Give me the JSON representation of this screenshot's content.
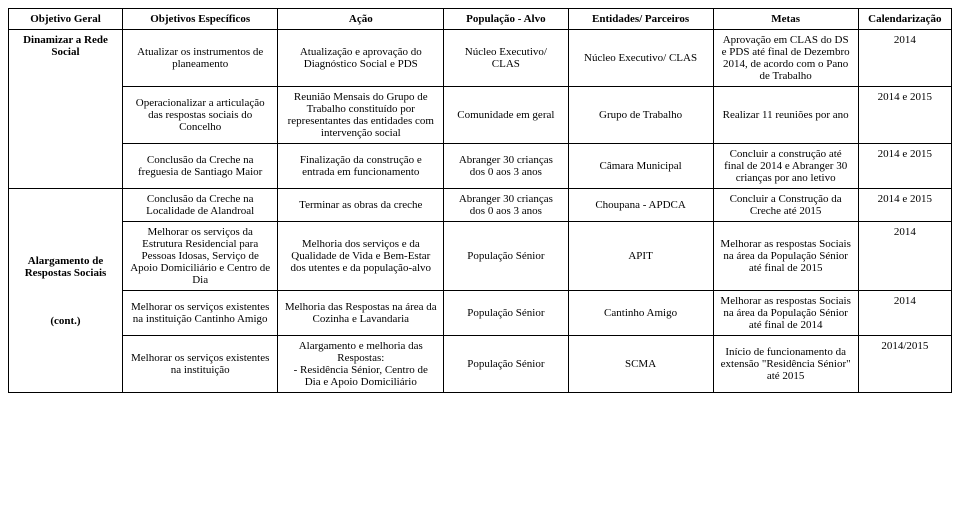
{
  "headers": {
    "c0": "Objetivo Geral",
    "c1": "Objetivos Específicos",
    "c2": "Ação",
    "c3": "População - Alvo",
    "c4": "Entidades/ Parceiros",
    "c5": "Metas",
    "c6": "Calendarização"
  },
  "rowhead1": "Dinamizar a Rede Social",
  "rowhead2": "Alargamento de Respostas Sociais\n\n\n\n(cont.)",
  "r": [
    {
      "oe": "Atualizar os instrumentos de planeamento",
      "ac": "Atualização e aprovação do Diagnóstico Social e PDS",
      "pa": "Núcleo Executivo/ CLAS",
      "ep": "Núcleo Executivo/ CLAS",
      "me": "Aprovação em CLAS do DS e PDS até final de Dezembro 2014, de acordo com o Pano de Trabalho",
      "ca": "2014"
    },
    {
      "oe": "Operacionalizar a articulação das respostas sociais do Concelho",
      "ac": "Reunião Mensais do Grupo de Trabalho constituído por representantes das entidades com intervenção social",
      "pa": "Comunidade em geral",
      "ep": "Grupo de Trabalho",
      "me": "Realizar 11 reuniões por ano",
      "ca": "2014 e 2015"
    },
    {
      "oe": "Conclusão da Creche na freguesia de Santiago Maior",
      "ac": "Finalização da construção e entrada em funcionamento",
      "pa": "Abranger 30 crianças dos 0 aos 3 anos",
      "ep": "Câmara Municipal",
      "me": "Concluir a construção até final de 2014 e Abranger 30 crianças por ano letivo",
      "ca": "2014 e 2015"
    },
    {
      "oe": "Conclusão da Creche na Localidade de Alandroal",
      "ac": "Terminar as obras da creche",
      "pa": "Abranger 30 crianças dos 0 aos 3 anos",
      "ep": "Choupana - APDCA",
      "me": "Concluir a Construção da Creche até 2015",
      "ca": "2014 e 2015"
    },
    {
      "oe": "Melhorar os serviços da Estrutura Residencial para Pessoas Idosas, Serviço de Apoio Domiciliário e Centro de Dia",
      "ac": "Melhoria dos serviços e da Qualidade de Vida e Bem-Estar dos utentes e da população-alvo",
      "pa": "População Sénior",
      "ep": "APIT",
      "me": "Melhorar as respostas Sociais na área da População Sénior até final de 2015",
      "ca": "2014"
    },
    {
      "oe": "Melhorar os serviços existentes na instituição Cantinho Amigo",
      "ac": "Melhoria das Respostas na área da Cozinha e Lavandaria",
      "pa": "População Sénior",
      "ep": "Cantinho Amigo",
      "me": "Melhorar as respostas Sociais na área da População Sénior até final de 2014",
      "ca": "2014"
    },
    {
      "oe": "Melhorar os serviços existentes na instituição",
      "ac": "Alargamento e melhoria das Respostas:\n- Residência Sénior, Centro de Dia e Apoio Domiciliário",
      "pa": "População Sénior",
      "ep": "SCMA",
      "me": "Início de funcionamento da extensão \"Residência Sénior\" até 2015",
      "ca": "2014/2015"
    }
  ]
}
